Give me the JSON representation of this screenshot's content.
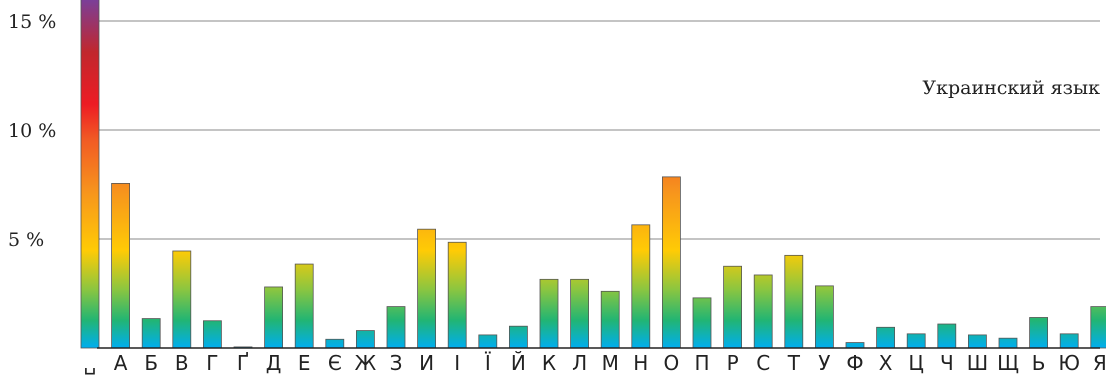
{
  "chart_data": {
    "type": "bar",
    "annotation": "Украинский язык",
    "y_tick_labels": [
      "5 %",
      "10 %",
      "15 %"
    ],
    "y_ticks": [
      5,
      10,
      15
    ],
    "ylim": [
      0,
      16
    ],
    "grid": true,
    "categories": [
      "␣",
      "А",
      "Б",
      "В",
      "Г",
      "Ґ",
      "Д",
      "Е",
      "Є",
      "Ж",
      "З",
      "И",
      "І",
      "Ї",
      "Й",
      "К",
      "Л",
      "М",
      "Н",
      "О",
      "П",
      "Р",
      "С",
      "Т",
      "У",
      "Ф",
      "Х",
      "Ц",
      "Ч",
      "Ш",
      "Щ",
      "Ь",
      "Ю",
      "Я"
    ],
    "values": [
      16.0,
      7.55,
      1.35,
      4.45,
      1.25,
      0.05,
      2.8,
      3.85,
      0.4,
      0.8,
      1.9,
      5.45,
      4.85,
      0.6,
      1.0,
      3.15,
      3.15,
      2.6,
      5.65,
      7.85,
      2.3,
      3.75,
      3.35,
      4.25,
      2.85,
      0.25,
      0.95,
      0.65,
      1.1,
      0.6,
      0.45,
      1.4,
      0.65,
      1.9
    ],
    "colors": {
      "bar_gradient": [
        "#00aeef",
        "#22b573",
        "#8dc63f",
        "#ffcb05",
        "#f7941d",
        "#f15a24",
        "#ed1c24",
        "#c1272d",
        "#7b3f98"
      ],
      "bar_outline": "#555555",
      "axis": "#222222",
      "grid": "#888888"
    }
  }
}
